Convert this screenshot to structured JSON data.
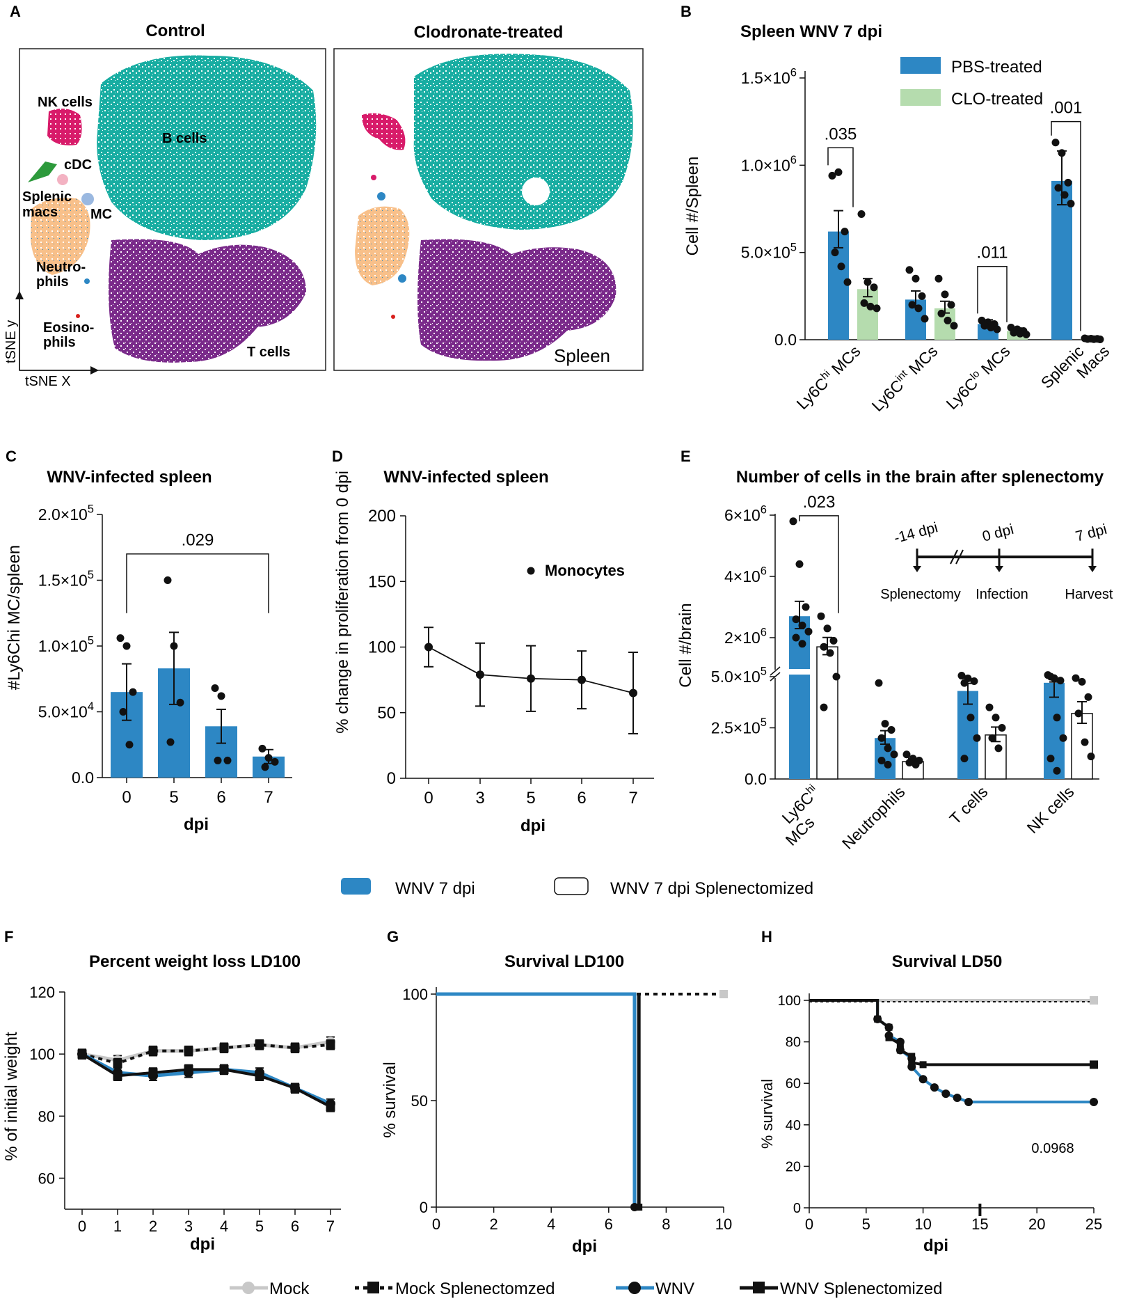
{
  "colors": {
    "blue": "#2d87c4",
    "green": "#b5dcae",
    "teal": "#18ada2",
    "purple": "#7a2a8a",
    "orange": "#f8c08a",
    "pink": "#d81b6a",
    "black": "#111111",
    "grey": "#c8c8c8"
  },
  "panelA": {
    "letter": "A",
    "title_left": "Control",
    "title_right": "Clodronate-treated",
    "axis_y": "tSNE y",
    "axis_x": "tSNE X",
    "tag": "Spleen",
    "labels": {
      "nk": "NK cells",
      "b": "B cells",
      "cdc": "cDC",
      "splenic": "Splenic",
      "macs": "macs",
      "mc": "MC",
      "neutro1": "Neutro-",
      "neutro2": "phils",
      "eos1": "Eosino-",
      "eos2": "phils",
      "t": "T cells"
    }
  },
  "chart_data": [
    {
      "panel": "B",
      "type": "bar",
      "title": "Spleen WNV 7 dpi",
      "ylabel": "Cell #/Spleen",
      "ylim": [
        0,
        1500000
      ],
      "yticks": [
        "0.0",
        "5.0×10⁵",
        "1.0×10⁶",
        "1.5×10⁶"
      ],
      "categories": [
        [
          "Ly6C",
          "hi",
          " MCs"
        ],
        [
          "Ly6C",
          "int",
          " MCs"
        ],
        [
          "Ly6C",
          "lo",
          " MCs"
        ],
        [
          "Splenic",
          "",
          "",
          " Macs"
        ]
      ],
      "category_labels": [
        "Ly6Chi MCs",
        "Ly6Cint MCs",
        "Ly6Clo MCs",
        "Splenic Macs"
      ],
      "series": [
        {
          "name": "PBS-treated",
          "values": [
            620000,
            230000,
            90000,
            910000
          ]
        },
        {
          "name": "CLO-treated",
          "values": [
            290000,
            180000,
            50000,
            5000
          ]
        }
      ],
      "pvalues": [
        ".035",
        "",
        ".011",
        ".001"
      ]
    },
    {
      "panel": "C",
      "type": "bar",
      "title": "WNV-infected spleen",
      "ylabel": "#Ly6Chi MC/spleen",
      "xlabel": "dpi",
      "ylim": [
        0,
        200000
      ],
      "yticks": [
        "0.0",
        "5.0×10⁴",
        "1.0×10⁵",
        "1.5×10⁵",
        "2.0×10⁵"
      ],
      "categories": [
        "0",
        "5",
        "6",
        "7"
      ],
      "values": [
        65000,
        83000,
        39000,
        16000
      ],
      "pvalue": ".029"
    },
    {
      "panel": "D",
      "type": "line",
      "title": "WNV-infected spleen",
      "ylabel": "% change in proliferation from 0 dpi",
      "xlabel": "dpi",
      "ylim": [
        0,
        200
      ],
      "yticks": [
        "0",
        "50",
        "100",
        "150",
        "200"
      ],
      "x": [
        "0",
        "3",
        "5",
        "6",
        "7"
      ],
      "values": [
        100,
        79,
        76,
        75,
        65
      ],
      "legend": "Monocytes"
    },
    {
      "panel": "E",
      "type": "bar",
      "title": "Number of cells in the brain after splenectomy",
      "ylabel": "Cell #/brain",
      "yticks": [
        "0.0",
        "2.5×10⁵",
        "5.0×10⁵",
        "2×10⁶",
        "4×10⁶",
        "6×10⁶"
      ],
      "categories": [
        "Ly6Chi MCs",
        "Neutrophils",
        "T cells",
        "NK cells"
      ],
      "series": [
        {
          "name": "WNV 7 dpi",
          "values": [
            2700000,
            200000,
            430000,
            470000
          ]
        },
        {
          "name": "WNV 7 dpi Splenectomized",
          "values": [
            1700000,
            85000,
            215000,
            320000
          ]
        }
      ],
      "pvalue": ".023",
      "timeline": {
        "points": [
          "-14 dpi",
          "0 dpi",
          "7 dpi"
        ],
        "events": [
          "Splenectomy",
          "Infection",
          "Harvest"
        ]
      }
    },
    {
      "panel": "F",
      "type": "line",
      "title": "Percent weight loss LD100",
      "ylabel": "% of initial weight",
      "xlabel": "dpi",
      "ylim": [
        60,
        120
      ],
      "yticks": [
        "60",
        "80",
        "100",
        "120"
      ],
      "x": [
        "0",
        "1",
        "2",
        "3",
        "4",
        "5",
        "6",
        "7"
      ],
      "series": [
        {
          "name": "Mock",
          "values": [
            100,
            98,
            101,
            101,
            102,
            103,
            102,
            104
          ]
        },
        {
          "name": "Mock Splenectomzed",
          "values": [
            100,
            97,
            101,
            101,
            102,
            103,
            102,
            103
          ]
        },
        {
          "name": "WNV",
          "values": [
            100,
            94,
            93,
            94,
            95,
            94,
            89,
            84
          ]
        },
        {
          "name": "WNV Splenectomized",
          "values": [
            100,
            93,
            94,
            95,
            95,
            93,
            89,
            83
          ]
        }
      ]
    },
    {
      "panel": "G",
      "type": "line",
      "title": "Survival LD100",
      "ylabel": "% survival",
      "xlabel": "dpi",
      "xlim": [
        0,
        10
      ],
      "ylim": [
        0,
        100
      ],
      "xticks": [
        "0",
        "2",
        "4",
        "6",
        "8",
        "10"
      ],
      "yticks": [
        "0",
        "50",
        "100"
      ],
      "series": [
        {
          "name": "Mock",
          "values": [
            [
              0,
              100
            ],
            [
              10,
              100
            ]
          ]
        },
        {
          "name": "WNV",
          "values": [
            [
              0,
              100
            ],
            [
              7,
              100
            ],
            [
              7,
              0
            ]
          ]
        }
      ]
    },
    {
      "panel": "H",
      "type": "line",
      "title": "Survival LD50",
      "ylabel": "% survival",
      "xlabel": "dpi",
      "xlim": [
        0,
        25
      ],
      "ylim": [
        0,
        100
      ],
      "xticks": [
        "0",
        "5",
        "10",
        "15",
        "20",
        "25"
      ],
      "yticks": [
        "0",
        "20",
        "40",
        "60",
        "80",
        "100"
      ],
      "pvalue": "0.0968",
      "series": [
        {
          "name": "Mock",
          "values": [
            [
              0,
              100
            ],
            [
              25,
              100
            ]
          ]
        },
        {
          "name": "WNV",
          "values": [
            [
              0,
              100
            ],
            [
              6,
              100
            ],
            [
              6,
              91
            ],
            [
              7,
              87
            ],
            [
              7,
              83
            ],
            [
              8,
              80
            ],
            [
              8,
              76
            ],
            [
              9,
              72
            ],
            [
              9,
              68
            ],
            [
              10,
              62
            ],
            [
              11,
              58
            ],
            [
              12,
              55
            ],
            [
              13,
              53
            ],
            [
              14,
              51
            ],
            [
              25,
              51
            ]
          ]
        },
        {
          "name": "WNV Splenectomized",
          "values": [
            [
              0,
              100
            ],
            [
              6,
              100
            ],
            [
              6,
              91
            ],
            [
              7,
              87
            ],
            [
              7,
              82
            ],
            [
              8,
              79
            ],
            [
              8,
              76
            ],
            [
              9,
              73
            ],
            [
              9,
              70
            ],
            [
              10,
              69
            ],
            [
              25,
              69
            ]
          ]
        }
      ]
    }
  ],
  "letters": {
    "B": "B",
    "C": "C",
    "D": "D",
    "E": "E",
    "F": "F",
    "G": "G",
    "H": "H"
  },
  "legend_middle": [
    "WNV 7 dpi",
    "WNV 7 dpi Splenectomized"
  ],
  "legend_bottom": [
    "Mock",
    "Mock Splenectomzed",
    "WNV",
    "WNV Splenectomized"
  ]
}
